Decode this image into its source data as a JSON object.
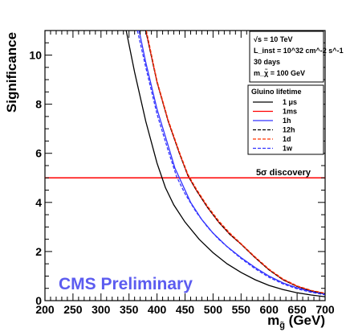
{
  "chart_data": {
    "type": "line",
    "title": "",
    "xlabel": "m_g̃ (GeV)",
    "xlabel_main": "m",
    "xlabel_sub": "g̃",
    "xlabel_unit": " (GeV)",
    "ylabel": "Significance",
    "xlim": [
      200,
      700
    ],
    "ylim": [
      0,
      11
    ],
    "x_ticks": [
      200,
      250,
      300,
      350,
      400,
      450,
      500,
      550,
      600,
      650,
      700
    ],
    "y_ticks": [
      0,
      2,
      4,
      6,
      8,
      10
    ],
    "grid": false,
    "legend_placement": "top-right",
    "legend_title": "Gluino lifetime",
    "info_box": [
      "√s = 10 TeV",
      "L_inst = 10^32 cm^-2 s^-1",
      "30 days",
      "m_χ̃ = 100 GeV"
    ],
    "reference_line": {
      "y": 5,
      "label": "5σ discovery",
      "color": "#ff0000"
    },
    "watermark": {
      "text": "CMS Preliminary",
      "color": "#5c5cf0"
    },
    "series": [
      {
        "name": "1 μs",
        "color": "#000000",
        "dash": "solid",
        "points": [
          [
            345,
            11
          ],
          [
            360,
            9.3
          ],
          [
            380,
            7.3
          ],
          [
            400,
            5.6
          ],
          [
            415,
            4.6
          ],
          [
            430,
            3.9
          ],
          [
            450,
            3.2
          ],
          [
            475,
            2.5
          ],
          [
            500,
            1.95
          ],
          [
            525,
            1.5
          ],
          [
            550,
            1.15
          ],
          [
            575,
            0.85
          ],
          [
            600,
            0.62
          ],
          [
            625,
            0.45
          ],
          [
            650,
            0.32
          ],
          [
            675,
            0.23
          ],
          [
            700,
            0.16
          ]
        ]
      },
      {
        "name": "1ms",
        "color": "#ff0000",
        "dash": "solid",
        "points": [
          [
            380,
            11
          ],
          [
            400,
            8.9
          ],
          [
            420,
            7.3
          ],
          [
            440,
            6.0
          ],
          [
            455,
            5.1
          ],
          [
            470,
            4.5
          ],
          [
            490,
            3.8
          ],
          [
            510,
            3.2
          ],
          [
            530,
            2.7
          ],
          [
            550,
            2.3
          ],
          [
            575,
            1.75
          ],
          [
            600,
            1.25
          ],
          [
            625,
            0.85
          ],
          [
            650,
            0.58
          ],
          [
            675,
            0.4
          ],
          [
            700,
            0.28
          ]
        ]
      },
      {
        "name": "1h",
        "color": "#3333ff",
        "dash": "solid",
        "points": [
          [
            368,
            11
          ],
          [
            380,
            9.7
          ],
          [
            400,
            7.8
          ],
          [
            420,
            6.3
          ],
          [
            432,
            5.4
          ],
          [
            440,
            5.0
          ],
          [
            460,
            4.0
          ],
          [
            480,
            3.3
          ],
          [
            500,
            2.75
          ],
          [
            525,
            2.2
          ],
          [
            550,
            1.75
          ],
          [
            575,
            1.35
          ],
          [
            600,
            1.0
          ],
          [
            625,
            0.72
          ],
          [
            650,
            0.52
          ],
          [
            675,
            0.37
          ],
          [
            700,
            0.27
          ]
        ]
      },
      {
        "name": "12h",
        "color": "#000000",
        "dash": "dash",
        "points": [
          [
            380,
            11
          ],
          [
            400,
            8.9
          ],
          [
            420,
            7.3
          ],
          [
            440,
            6.0
          ],
          [
            455,
            5.1
          ],
          [
            470,
            4.5
          ],
          [
            490,
            3.8
          ],
          [
            510,
            3.2
          ],
          [
            530,
            2.7
          ],
          [
            550,
            2.3
          ],
          [
            575,
            1.75
          ],
          [
            600,
            1.25
          ],
          [
            625,
            0.85
          ],
          [
            650,
            0.58
          ],
          [
            675,
            0.4
          ],
          [
            700,
            0.28
          ]
        ]
      },
      {
        "name": "1d",
        "color": "#ff3300",
        "dash": "dash",
        "points": [
          [
            381,
            11
          ],
          [
            400,
            8.95
          ],
          [
            420,
            7.35
          ],
          [
            440,
            6.05
          ],
          [
            455,
            5.15
          ],
          [
            470,
            4.55
          ],
          [
            490,
            3.85
          ],
          [
            510,
            3.25
          ],
          [
            530,
            2.75
          ],
          [
            550,
            2.32
          ],
          [
            575,
            1.78
          ],
          [
            600,
            1.28
          ],
          [
            625,
            0.88
          ],
          [
            650,
            0.6
          ],
          [
            675,
            0.42
          ],
          [
            700,
            0.3
          ]
        ]
      },
      {
        "name": "1w",
        "color": "#3333ff",
        "dash": "dash",
        "points": [
          [
            365,
            11
          ],
          [
            380,
            9.5
          ],
          [
            400,
            7.6
          ],
          [
            420,
            6.1
          ],
          [
            435,
            5.05
          ],
          [
            450,
            4.35
          ],
          [
            470,
            3.6
          ],
          [
            490,
            3.0
          ],
          [
            510,
            2.5
          ],
          [
            530,
            2.1
          ],
          [
            550,
            1.72
          ],
          [
            575,
            1.3
          ],
          [
            600,
            0.95
          ],
          [
            625,
            0.68
          ],
          [
            650,
            0.48
          ],
          [
            675,
            0.34
          ],
          [
            700,
            0.24
          ]
        ]
      }
    ]
  }
}
